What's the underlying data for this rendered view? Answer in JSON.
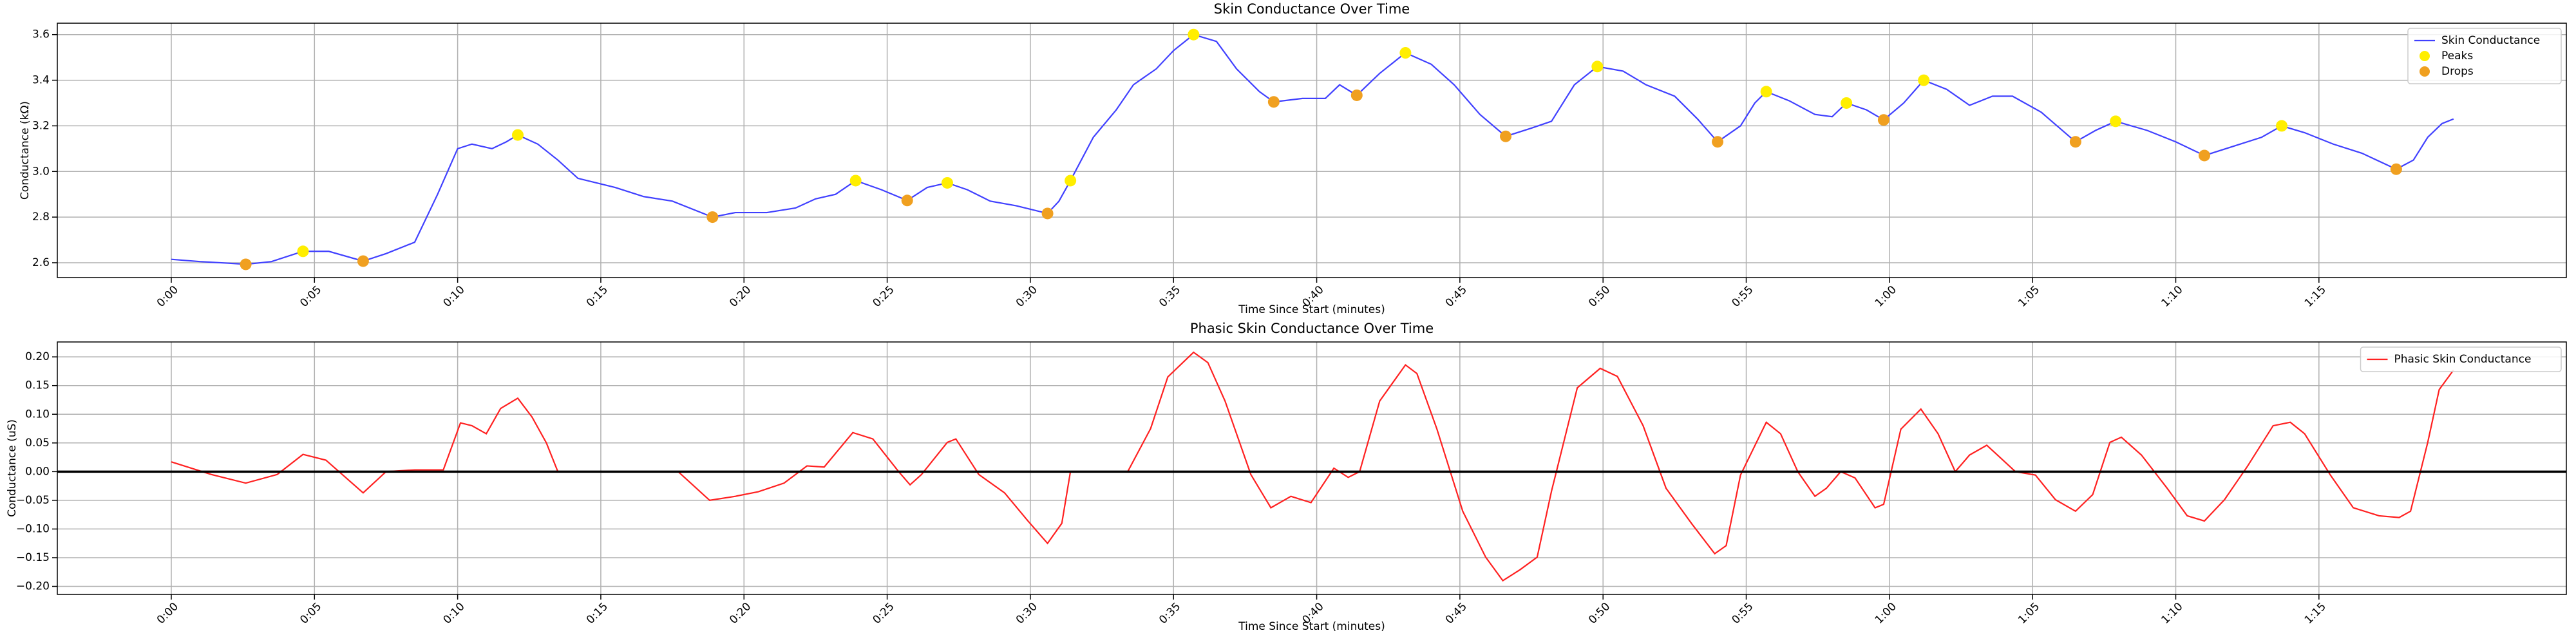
{
  "chart_data": [
    {
      "type": "line",
      "title": "Skin Conductance Over Time",
      "x_label": "Time Since Start (minutes)",
      "y_label": "Conductance (kΩ)",
      "xlim": [
        -3.98,
        83.64
      ],
      "xticks": [
        {
          "value": 0,
          "label": "0:00"
        },
        {
          "value": 5,
          "label": "0:05"
        },
        {
          "value": 10,
          "label": "0:10"
        },
        {
          "value": 15,
          "label": "0:15"
        },
        {
          "value": 20,
          "label": "0:20"
        },
        {
          "value": 25,
          "label": "0:25"
        },
        {
          "value": 30,
          "label": "0:30"
        },
        {
          "value": 35,
          "label": "0:35"
        },
        {
          "value": 40,
          "label": "0:40"
        },
        {
          "value": 45,
          "label": "0:45"
        },
        {
          "value": 50,
          "label": "0:50"
        },
        {
          "value": 55,
          "label": "0:55"
        },
        {
          "value": 60,
          "label": "1:00"
        },
        {
          "value": 65,
          "label": "1:05"
        },
        {
          "value": 70,
          "label": "1:10"
        },
        {
          "value": 75,
          "label": "1:15"
        }
      ],
      "ylim": [
        2.535,
        3.65
      ],
      "yticks": [
        2.6,
        2.8,
        {
          "value": 3,
          "label": "3.0"
        },
        3.2,
        3.4,
        3.6
      ],
      "grid": true,
      "legend": "upper right",
      "series": [
        {
          "name": "Skin Conductance",
          "type": "line",
          "color": "#4040ff",
          "x": [
            0,
            1,
            2,
            2.6,
            3.5,
            4.6,
            5.5,
            6.7,
            7.5,
            8.5,
            9.3,
            10,
            10.5,
            11.2,
            11.7,
            12.1,
            12.8,
            13.5,
            14.2,
            15.5,
            16.5,
            17.5,
            18.9,
            19.7,
            20.8,
            21.8,
            22.5,
            23.2,
            23.9,
            24.8,
            25.7,
            26.4,
            27.1,
            27.8,
            28.6,
            29.5,
            30.6,
            31,
            31.4,
            32.2,
            33,
            33.6,
            34.4,
            35,
            35.7,
            36.5,
            37.2,
            38,
            38.5,
            39.5,
            40.3,
            40.8,
            41.4,
            42.2,
            43.1,
            44,
            44.8,
            45.7,
            46.6,
            47.5,
            48.2,
            49,
            49.8,
            50.7,
            51.5,
            52.5,
            53.3,
            54,
            54.8,
            55.3,
            55.7,
            56.5,
            57.4,
            58,
            58.5,
            59.2,
            59.8,
            60.5,
            61.2,
            62,
            62.8,
            63.6,
            64.3,
            65.3,
            66.5,
            67.2,
            67.9,
            69,
            70,
            71,
            72,
            73,
            73.7,
            74.5,
            75.5,
            76.5,
            77.7,
            78.3,
            78.8,
            79.3,
            79.7
          ],
          "values": [
            2.615,
            2.605,
            2.598,
            2.593,
            2.605,
            2.65,
            2.65,
            2.607,
            2.64,
            2.69,
            2.9,
            3.1,
            3.12,
            3.1,
            3.13,
            3.16,
            3.12,
            3.05,
            2.97,
            2.93,
            2.89,
            2.87,
            2.8,
            2.82,
            2.82,
            2.84,
            2.88,
            2.9,
            2.96,
            2.92,
            2.873,
            2.93,
            2.95,
            2.92,
            2.87,
            2.85,
            2.816,
            2.87,
            2.96,
            3.15,
            3.27,
            3.38,
            3.45,
            3.53,
            3.6,
            3.57,
            3.45,
            3.35,
            3.305,
            3.32,
            3.32,
            3.38,
            3.334,
            3.43,
            3.52,
            3.47,
            3.38,
            3.25,
            3.154,
            3.19,
            3.22,
            3.38,
            3.46,
            3.44,
            3.38,
            3.33,
            3.23,
            3.13,
            3.2,
            3.3,
            3.35,
            3.31,
            3.25,
            3.24,
            3.3,
            3.27,
            3.226,
            3.3,
            3.4,
            3.36,
            3.29,
            3.33,
            3.33,
            3.26,
            3.13,
            3.18,
            3.22,
            3.18,
            3.13,
            3.07,
            3.11,
            3.15,
            3.2,
            3.17,
            3.12,
            3.08,
            3.01,
            3.05,
            3.15,
            3.21,
            3.23
          ]
        },
        {
          "name": "Peaks",
          "type": "scatter",
          "color": "#ffee00",
          "x": [
            4.6,
            12.1,
            23.9,
            27.1,
            31.4,
            35.7,
            43.1,
            49.8,
            55.7,
            58.5,
            61.2,
            67.9,
            73.7
          ],
          "values": [
            2.65,
            3.16,
            2.96,
            2.95,
            2.96,
            3.6,
            3.52,
            3.46,
            3.35,
            3.3,
            3.4,
            3.22,
            3.2
          ]
        },
        {
          "name": "Drops",
          "type": "scatter",
          "color": "#f0a020",
          "x": [
            2.6,
            6.7,
            18.9,
            25.7,
            30.6,
            38.5,
            41.4,
            46.6,
            54,
            59.8,
            66.5,
            71,
            77.7
          ],
          "values": [
            2.593,
            2.607,
            2.8,
            2.873,
            2.816,
            3.305,
            3.334,
            3.154,
            3.13,
            3.226,
            3.13,
            3.07,
            3.01
          ]
        }
      ]
    },
    {
      "type": "line",
      "title": "Phasic Skin Conductance Over Time",
      "x_label": "Time Since Start (minutes)",
      "y_label": "Conductance (uS)",
      "xlim": [
        -3.98,
        83.64
      ],
      "xticks": [
        {
          "value": 0,
          "label": "0:00"
        },
        {
          "value": 5,
          "label": "0:05"
        },
        {
          "value": 10,
          "label": "0:10"
        },
        {
          "value": 15,
          "label": "0:15"
        },
        {
          "value": 20,
          "label": "0:20"
        },
        {
          "value": 25,
          "label": "0:25"
        },
        {
          "value": 30,
          "label": "0:30"
        },
        {
          "value": 35,
          "label": "0:35"
        },
        {
          "value": 40,
          "label": "0:40"
        },
        {
          "value": 45,
          "label": "0:45"
        },
        {
          "value": 50,
          "label": "0:50"
        },
        {
          "value": 55,
          "label": "0:55"
        },
        {
          "value": 60,
          "label": "1:00"
        },
        {
          "value": 65,
          "label": "1:05"
        },
        {
          "value": 70,
          "label": "1:10"
        },
        {
          "value": 75,
          "label": "1:15"
        }
      ],
      "ylim": [
        -0.214,
        0.226
      ],
      "yticks": [
        {
          "value": -0.2,
          "label": "−0.20"
        },
        {
          "value": -0.15,
          "label": "−0.15"
        },
        {
          "value": -0.1,
          "label": "−0.10"
        },
        {
          "value": -0.05,
          "label": "−0.05"
        },
        {
          "value": 0,
          "label": "0.00"
        },
        {
          "value": 0.05,
          "label": "0.05"
        },
        {
          "value": 0.1,
          "label": "0.10"
        },
        {
          "value": 0.15,
          "label": "0.15"
        },
        {
          "value": 0.2,
          "label": "0.20"
        }
      ],
      "grid": true,
      "legend": "upper right",
      "hlines": [
        {
          "value": 0,
          "color": "#000000"
        }
      ],
      "series": [
        {
          "name": "Phasic Skin Conductance",
          "type": "line",
          "color": "#ff2020",
          "x": [
            0,
            1.4,
            2.6,
            3.7,
            4.6,
            5.4,
            6.7,
            7.5,
            8.5,
            9.5,
            10.1,
            10.5,
            11,
            11.5,
            12.1,
            12.6,
            13.1,
            13.5,
            17.7,
            18.8,
            19.7,
            20.5,
            21.4,
            22.2,
            22.8,
            23.8,
            24.5,
            25.4,
            25.8,
            26.2,
            27.1,
            27.4,
            28.2,
            29.1,
            29.9,
            30.6,
            31.1,
            31.4,
            33.4,
            34.2,
            34.8,
            35.7,
            36.2,
            36.8,
            37.7,
            38.4,
            39.1,
            39.8,
            40.6,
            41.1,
            41.5,
            42.2,
            43.1,
            43.5,
            44.2,
            45.1,
            45.9,
            46.5,
            47.1,
            47.7,
            48.2,
            49.1,
            49.9,
            50.5,
            51.4,
            52.2,
            53.1,
            53.9,
            54.3,
            54.8,
            55.7,
            56.2,
            56.8,
            57.4,
            57.8,
            58.3,
            58.8,
            59.5,
            59.8,
            60.4,
            61.1,
            61.7,
            62.3,
            62.8,
            63.4,
            63.9,
            64.4,
            65.1,
            65.8,
            66.5,
            67.1,
            67.7,
            68.1,
            68.8,
            69.7,
            70.4,
            71,
            71.7,
            72.5,
            73.4,
            74,
            74.5,
            75.4,
            76.2,
            77.1,
            77.8,
            78.2,
            78.8,
            79.2,
            79.7
          ],
          "values": [
            0.017,
            -0.005,
            -0.02,
            -0.005,
            0.03,
            0.02,
            -0.037,
            0,
            0.003,
            0.003,
            0.085,
            0.08,
            0.066,
            0.11,
            0.128,
            0.095,
            0.05,
            0,
            0,
            -0.05,
            -0.043,
            -0.035,
            -0.02,
            0.01,
            0.008,
            0.068,
            0.057,
            0,
            -0.023,
            -0.005,
            0.051,
            0.057,
            -0.005,
            -0.037,
            -0.085,
            -0.125,
            -0.09,
            0,
            0,
            0.075,
            0.165,
            0.208,
            0.19,
            0.123,
            -0.005,
            -0.063,
            -0.043,
            -0.054,
            0.006,
            -0.01,
            0,
            0.123,
            0.186,
            0.171,
            0.074,
            -0.069,
            -0.149,
            -0.19,
            -0.171,
            -0.149,
            -0.034,
            0.146,
            0.18,
            0.166,
            0.08,
            -0.029,
            -0.091,
            -0.143,
            -0.129,
            -0.006,
            0.086,
            0.066,
            0,
            -0.043,
            -0.029,
            0,
            -0.011,
            -0.063,
            -0.057,
            0.074,
            0.109,
            0.066,
            0,
            0.029,
            0.046,
            0.023,
            0,
            -0.006,
            -0.049,
            -0.069,
            -0.04,
            0.051,
            0.06,
            0.029,
            -0.029,
            -0.077,
            -0.086,
            -0.049,
            0.009,
            0.08,
            0.086,
            0.066,
            -0.006,
            -0.063,
            -0.077,
            -0.08,
            -0.069,
            0.051,
            0.143,
            0.177
          ]
        }
      ]
    }
  ]
}
